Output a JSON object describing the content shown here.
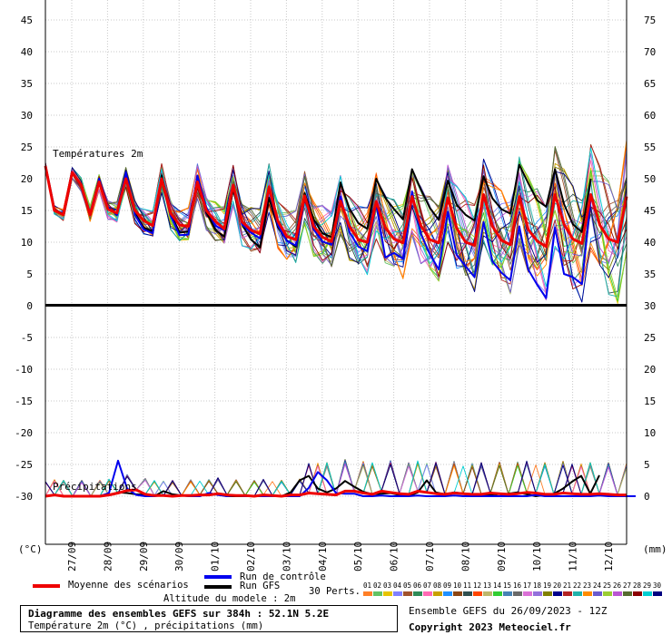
{
  "chart_data": {
    "type": "line",
    "panels": [
      {
        "label": "Températures 2m",
        "left_axis_ticks": [
          45,
          40,
          35,
          30,
          25,
          20,
          15,
          10,
          5,
          0
        ],
        "right_axis_ticks": [
          75,
          70,
          65,
          60,
          55,
          50,
          45,
          40,
          35,
          30
        ],
        "ylim": [
          0,
          47
        ]
      },
      {
        "label": "Précipitations",
        "left_axis_ticks": [
          -5,
          -10,
          -15,
          -20,
          -25,
          -30
        ],
        "right_axis_ticks": [
          25,
          20,
          15,
          10,
          5,
          0
        ],
        "ylim": [
          -38,
          0
        ]
      }
    ],
    "x_tick_labels": [
      "27/09",
      "28/09",
      "29/09",
      "30/09",
      "01/10",
      "02/10",
      "03/10",
      "04/10",
      "05/10",
      "06/10",
      "07/10",
      "08/10",
      "09/10",
      "10/10",
      "11/10",
      "12/10"
    ],
    "left_unit": "(°C)",
    "right_unit": "(mm)",
    "series": [
      {
        "name": "Moyenne des scénarios",
        "color": "#ee0000",
        "temperature": [
          22,
          15,
          14.3,
          21,
          19,
          14.3,
          19.5,
          15.2,
          14.6,
          20,
          15,
          13.4,
          12.6,
          20,
          14.6,
          12.7,
          12.5,
          19.5,
          15,
          13.3,
          12.1,
          19,
          13.2,
          11.9,
          11.3,
          18.7,
          13.3,
          10.9,
          10.4,
          17.3,
          12.5,
          10.8,
          10.1,
          16.5,
          12.5,
          10.4,
          10,
          16.4,
          12.3,
          10.5,
          9.9,
          17.2,
          12.6,
          10.4,
          9.9,
          17,
          12.2,
          10,
          9.5,
          17.5,
          12.5,
          10.3,
          9.6,
          17.2,
          12,
          10.2,
          9.3,
          17.5,
          12.8,
          10.5,
          9.8,
          17.5,
          12.7,
          10.5,
          10,
          17.2
        ],
        "precipitation": [
          0,
          0.2,
          0,
          0,
          0,
          0,
          0,
          0.2,
          0.5,
          0.9,
          1,
          0.3,
          0.1,
          0.1,
          0,
          0.1,
          0.1,
          0.2,
          0.2,
          0.4,
          0.2,
          0.1,
          0.1,
          0,
          0.2,
          0.1,
          0,
          0.2,
          0.2,
          0.5,
          0.4,
          0.3,
          0.2,
          0.8,
          0.8,
          0.5,
          0.3,
          0.8,
          0.6,
          0.4,
          0.3,
          0.8,
          0.6,
          0.4,
          0.3,
          0.5,
          0.4,
          0.3,
          0.3,
          0.5,
          0.4,
          0.3,
          0.4,
          0.6,
          0.5,
          0.3,
          0.3,
          0.5,
          0.4,
          0.3,
          0.3,
          0.4,
          0.3,
          0.2,
          0.2
        ]
      },
      {
        "name": "Run de contrôle",
        "color": "#0000ee",
        "temperature": [
          22,
          15,
          14.3,
          21,
          19,
          14.3,
          20,
          15.5,
          14.3,
          21,
          14.3,
          12,
          11.4,
          20,
          14.2,
          11.1,
          11.2,
          20.5,
          15.5,
          12.6,
          11.9,
          18.8,
          12.8,
          11.5,
          10.6,
          18.4,
          12.7,
          10.2,
          9.5,
          17,
          12,
          10.1,
          9.6,
          17.2,
          11.6,
          9.3,
          8.6,
          16,
          7.6,
          8.3,
          7.4,
          18,
          11.3,
          8.1,
          5.7,
          14.8,
          8,
          6.2,
          4.5,
          13.2,
          7,
          5.2,
          4,
          12.5,
          5.7,
          3.3,
          1.2,
          12.3,
          5,
          4.5,
          3.4,
          17
        ],
        "precipitation": [
          0,
          0.2,
          0,
          0,
          0,
          0,
          0,
          0.5,
          5.6,
          1.2,
          0.2,
          0,
          0,
          0.2,
          0,
          0.1,
          0,
          0,
          0.5,
          0.2,
          0,
          0.1,
          0,
          0,
          0,
          0,
          0,
          0,
          0,
          1.3,
          3.8,
          2.5,
          0.5,
          0.4,
          0.4,
          0,
          0,
          0.1,
          0,
          0,
          0,
          0.1,
          0,
          0,
          0,
          0.1,
          0,
          0,
          0,
          0,
          0,
          0,
          0,
          0,
          0.2,
          0,
          0,
          0,
          0,
          0,
          0,
          0.1,
          0,
          0,
          0,
          0
        ]
      },
      {
        "name": "Run GFS",
        "color": "#000000",
        "temperature": [
          22,
          15,
          14.3,
          21,
          19,
          14.3,
          20,
          15.5,
          14.3,
          20.6,
          14.6,
          12.3,
          11.7,
          20.5,
          14.6,
          11.5,
          11.7,
          20.5,
          14.8,
          11.9,
          10.9,
          18.4,
          12.8,
          10.4,
          9.2,
          17,
          12.4,
          10.3,
          9.3,
          17.7,
          13.6,
          11.4,
          10.8,
          19.4,
          15.3,
          13,
          12.1,
          20,
          17,
          15.2,
          13.6,
          21.5,
          18.3,
          15.4,
          13.5,
          19.7,
          15.9,
          14.3,
          13.4,
          20.4,
          16.9,
          15.2,
          14.5,
          22.2,
          19.3,
          16.6,
          15.6,
          21.5,
          16,
          12.8,
          11.6,
          20
        ],
        "precipitation": [
          0,
          0.2,
          0,
          0,
          0,
          0,
          0,
          0.2,
          0.6,
          0.5,
          0.3,
          0.2,
          0,
          0.8,
          0.3,
          0.1,
          0,
          0.2,
          0.2,
          0.3,
          0,
          0,
          0,
          0,
          0.2,
          0.1,
          0,
          0.6,
          2.5,
          3.2,
          1.2,
          0.6,
          1.2,
          2.4,
          1.5,
          0.7,
          0.3,
          0.4,
          0.5,
          0.2,
          0,
          0.6,
          2.5,
          0.6,
          0.3,
          0.6,
          0.4,
          0,
          0,
          0.2,
          0,
          0.4,
          0.6,
          0.3,
          0,
          0.2,
          0.4,
          1.2,
          2.3,
          3.2,
          0.4,
          3.3
        ]
      }
    ]
  },
  "legend": {
    "mean_label": "Moyenne des scénarios",
    "control_label": "Run de contrôle",
    "gfs_label": "Run GFS",
    "model_altitude": "Altitude du modele : 2m",
    "perts_label": "30 Perts.",
    "pert_numbers": [
      "01",
      "02",
      "03",
      "04",
      "05",
      "06",
      "07",
      "08",
      "09",
      "10",
      "11",
      "12",
      "13",
      "14",
      "15",
      "16",
      "17",
      "18",
      "19",
      "20",
      "21",
      "22",
      "23",
      "24",
      "25",
      "26",
      "27",
      "28",
      "29",
      "30"
    ],
    "pert_colors": [
      "#ff7f27",
      "#63c263",
      "#e6c300",
      "#7f7fff",
      "#a0522d",
      "#2e8b57",
      "#ff69b4",
      "#c8a000",
      "#1e90ff",
      "#8b4513",
      "#2f4f4f",
      "#ff4500",
      "#bdb76b",
      "#32cd32",
      "#4682b4",
      "#696969",
      "#da70d6",
      "#9370db",
      "#808000",
      "#00008b",
      "#b22222",
      "#20b2aa",
      "#ff8c00",
      "#6a5acd",
      "#9acd32",
      "#ba55d3",
      "#556b2f",
      "#8b0000",
      "#00ced1",
      "#000080"
    ]
  },
  "footer": {
    "title": "Diagramme des ensembles GEFS sur 384h : 52.1N 5.2E",
    "subtitle": "Température 2m (°C) , précipitations (mm)",
    "ensemble_run": "Ensemble GEFS du 26/09/2023 - 12Z",
    "copyright": "Copyright 2023 Meteociel.fr"
  }
}
